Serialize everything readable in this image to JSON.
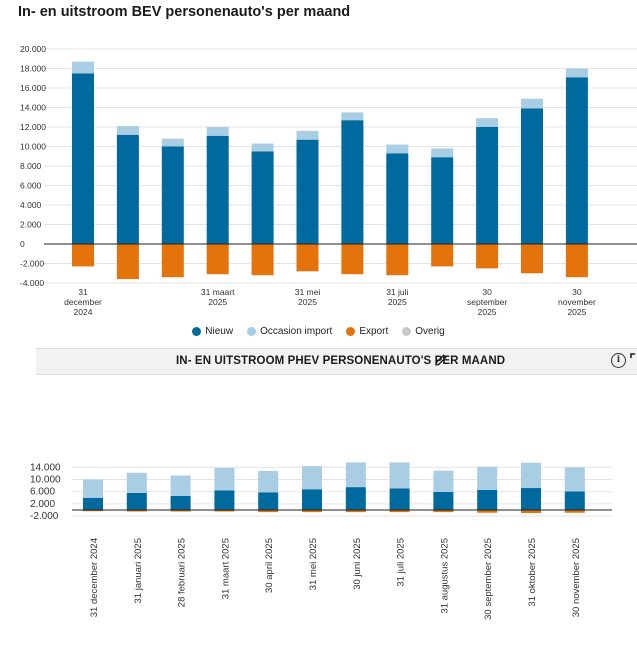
{
  "chart1": {
    "title": "In- en uitstroom BEV personenauto's per maand",
    "legend": [
      {
        "label": "Nieuw",
        "color": "#00699d"
      },
      {
        "label": "Occasion import",
        "color": "#a9cde2"
      },
      {
        "label": "Export",
        "color": "#e4730b"
      },
      {
        "label": "Overig",
        "color": "#c8c8c8"
      }
    ]
  },
  "chart2": {
    "title": "IN- EN UITSTROOM PHEV PERSONENAUTO'S PER MAAND",
    "icons": {
      "edit": "pencil-icon",
      "info": "info-icon",
      "expand": "expand-icon"
    }
  },
  "chart_data": [
    {
      "type": "bar",
      "stacked": true,
      "title": "In- en uitstroom BEV personenauto's per maand",
      "categories": [
        "31 december 2024",
        "31 januari 2025",
        "28 februari 2025",
        "31 maart 2025",
        "30 april 2025",
        "31 mei 2025",
        "30 juni 2025",
        "31 juli 2025",
        "31 augustus 2025",
        "30 september 2025",
        "31 oktober 2025",
        "30 november 2025"
      ],
      "x_tick_labels": [
        {
          "index": 0,
          "lines": [
            "31",
            "december",
            "2024"
          ]
        },
        {
          "index": 3,
          "lines": [
            "31 maart",
            "2025"
          ]
        },
        {
          "index": 5,
          "lines": [
            "31 mei",
            "2025"
          ]
        },
        {
          "index": 7,
          "lines": [
            "31 juli",
            "2025"
          ]
        },
        {
          "index": 9,
          "lines": [
            "30",
            "september",
            "2025"
          ]
        },
        {
          "index": 11,
          "lines": [
            "30",
            "november",
            "2025"
          ]
        }
      ],
      "series": [
        {
          "name": "Nieuw",
          "color": "#00699d",
          "values": [
            17500,
            11200,
            10000,
            11100,
            9500,
            10700,
            12700,
            9300,
            8900,
            12000,
            13900,
            17100
          ]
        },
        {
          "name": "Occasion import",
          "color": "#a9cde2",
          "values": [
            1200,
            900,
            800,
            900,
            800,
            900,
            800,
            900,
            900,
            900,
            1000,
            900
          ]
        },
        {
          "name": "Export",
          "color": "#e4730b",
          "values": [
            -2300,
            -3600,
            -3400,
            -3100,
            -3200,
            -2800,
            -3100,
            -3200,
            -2300,
            -2500,
            -3000,
            -3400
          ]
        },
        {
          "name": "Overig",
          "color": "#c8c8c8",
          "values": [
            0,
            0,
            0,
            0,
            0,
            0,
            0,
            0,
            0,
            0,
            0,
            0
          ]
        }
      ],
      "ylim": [
        -4000,
        20000
      ],
      "yticks": [
        -4000,
        -2000,
        0,
        2000,
        4000,
        6000,
        8000,
        10000,
        12000,
        14000,
        16000,
        18000,
        20000
      ],
      "ytick_labels": [
        "-4.000",
        "-2.000",
        "0",
        "2.000",
        "4.000",
        "6.000",
        "8.000",
        "10.000",
        "12.000",
        "14.000",
        "16.000",
        "18.000",
        "20.000"
      ],
      "grid": true,
      "legend_position": "bottom-center"
    },
    {
      "type": "bar",
      "stacked": true,
      "title": "IN- EN UITSTROOM PHEV PERSONENAUTO'S PER MAAND",
      "categories": [
        "31 december 2024",
        "31 januari 2025",
        "28 februari 2025",
        "31 maart 2025",
        "30 april 2025",
        "31 mei 2025",
        "30 juni 2025",
        "31 juli 2025",
        "31 augustus 2025",
        "30 september 2025",
        "31 oktober 2025",
        "30 november 2025"
      ],
      "series": [
        {
          "name": "Nieuw",
          "color": "#00699d",
          "values": [
            4000,
            5600,
            4600,
            6400,
            5800,
            6800,
            7500,
            7100,
            5900,
            6600,
            7200,
            6100
          ]
        },
        {
          "name": "Occasion import",
          "color": "#a9cde2",
          "values": [
            6000,
            6600,
            6700,
            7400,
            7000,
            7600,
            8100,
            8500,
            7000,
            7600,
            8300,
            7900
          ]
        },
        {
          "name": "Export",
          "color": "#e4730b",
          "values": [
            -400,
            -500,
            -500,
            -500,
            -700,
            -700,
            -700,
            -700,
            -700,
            -900,
            -1000,
            -900
          ]
        }
      ],
      "ylim": [
        -2000,
        16000
      ],
      "yticks": [
        -2000,
        2000,
        6000,
        10000,
        14000
      ],
      "ytick_labels": [
        "-2.000",
        "2.000",
        "6.000",
        "10.000",
        "14.000"
      ],
      "grid": true
    }
  ]
}
